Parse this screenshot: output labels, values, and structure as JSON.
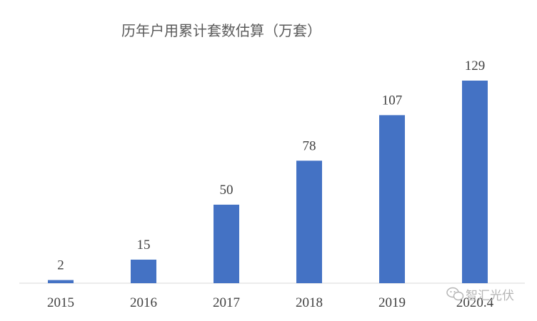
{
  "chart_data": {
    "type": "bar",
    "title": "历年户用累计套数估算（万套）",
    "categories": [
      "2015",
      "2016",
      "2017",
      "2018",
      "2019",
      "2020.4"
    ],
    "values": [
      2,
      15,
      50,
      78,
      107,
      129
    ],
    "data_labels": [
      "2",
      "15",
      "50",
      "78",
      "107",
      "129"
    ],
    "xlabel": "",
    "ylabel": "",
    "ylim": [
      0,
      129
    ],
    "grid": false,
    "legend": "none",
    "bar_color": "#4472C4"
  },
  "watermark": {
    "text": "智汇光伏",
    "icon": "wechat-icon"
  }
}
